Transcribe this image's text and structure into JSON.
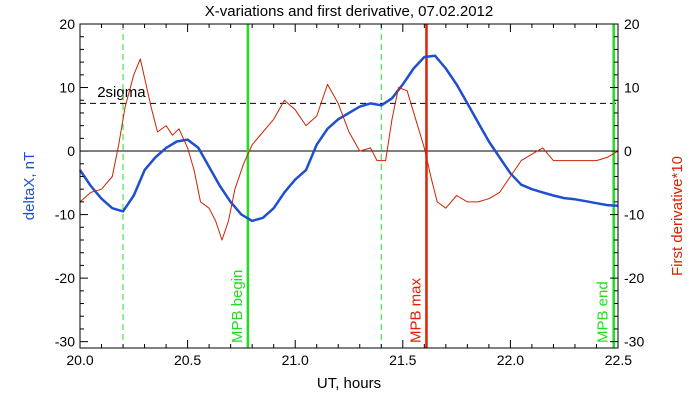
{
  "chart_data": {
    "type": "line",
    "title": "X-variations and first derivative, 07.02.2012",
    "xlabel": "UT, hours",
    "ylabel_left": "deltaX, nT",
    "ylabel_right": "First derivative*10",
    "xlim": [
      20.0,
      22.5
    ],
    "ylim": [
      -31,
      20
    ],
    "x_ticks": [
      {
        "value": 20.0,
        "label": "20.0"
      },
      {
        "value": 20.5,
        "label": "20.5"
      },
      {
        "value": 21.0,
        "label": "21.0"
      },
      {
        "value": 21.5,
        "label": "21.5"
      },
      {
        "value": 22.0,
        "label": "22.0"
      },
      {
        "value": 22.5,
        "label": "22.5"
      }
    ],
    "y_ticks": [
      {
        "value": 20,
        "label": "20"
      },
      {
        "value": 10,
        "label": "10"
      },
      {
        "value": 0,
        "label": "0"
      },
      {
        "value": -10,
        "label": "-10"
      },
      {
        "value": -20,
        "label": "-20"
      },
      {
        "value": -30,
        "label": "-30"
      }
    ],
    "colors": {
      "deltax": "#1f4fd0",
      "derivative": "#cc2200",
      "green": "#22dd22",
      "red_marker": "#dd2200",
      "left_label": "#1f4fd0",
      "right_label": "#dd2200"
    },
    "horizontal_lines": [
      {
        "y": 0,
        "style": "solid",
        "color": "#000000"
      },
      {
        "y": 7.5,
        "style": "dashed",
        "color": "#000000",
        "label": "2sigma",
        "label_x": 20.08,
        "label_y": 8.5
      }
    ],
    "vertical_markers": [
      {
        "x": 20.2,
        "style": "dashed",
        "color": "#22dd22",
        "label": ""
      },
      {
        "x": 20.78,
        "style": "solid",
        "color": "#22dd22",
        "label": "MPB begin"
      },
      {
        "x": 21.4,
        "style": "dashed",
        "color": "#22dd22",
        "label": ""
      },
      {
        "x": 21.61,
        "style": "solid",
        "color": "#dd2200",
        "label": "MPB max"
      },
      {
        "x": 22.48,
        "style": "solid",
        "color": "#22dd22",
        "label": "MPB end"
      }
    ],
    "series": [
      {
        "color": "#1f4fd0",
        "x": [
          20.0,
          20.05,
          20.1,
          20.15,
          20.2,
          20.25,
          20.3,
          20.35,
          20.4,
          20.45,
          20.5,
          20.55,
          20.6,
          20.65,
          20.7,
          20.75,
          20.8,
          20.85,
          20.9,
          20.95,
          21.0,
          21.05,
          21.1,
          21.15,
          21.2,
          21.25,
          21.3,
          21.35,
          21.4,
          21.45,
          21.5,
          21.55,
          21.6,
          21.65,
          21.7,
          21.75,
          21.8,
          21.85,
          21.9,
          21.95,
          22.0,
          22.05,
          22.1,
          22.15,
          22.2,
          22.25,
          22.3,
          22.35,
          22.4,
          22.45,
          22.5
        ],
        "y": [
          -3,
          -5.5,
          -7.5,
          -9,
          -9.5,
          -7,
          -3,
          -1,
          0.5,
          1.5,
          1.8,
          0.5,
          -2.5,
          -5.5,
          -8,
          -10,
          -11,
          -10.5,
          -9,
          -6.5,
          -4.5,
          -3,
          1,
          3.5,
          5,
          6,
          7,
          7.5,
          7.2,
          8.3,
          10.5,
          13,
          14.8,
          15,
          13,
          10.5,
          7.5,
          4.5,
          1.5,
          -1,
          -3.5,
          -5.3,
          -6,
          -6.5,
          -7,
          -7.4,
          -7.6,
          -7.9,
          -8.2,
          -8.5,
          -8.6
        ]
      },
      {
        "color": "#cc2200",
        "x": [
          20.0,
          20.05,
          20.1,
          20.15,
          20.18,
          20.21,
          20.25,
          20.28,
          20.3,
          20.33,
          20.36,
          20.4,
          20.43,
          20.46,
          20.5,
          20.53,
          20.56,
          20.6,
          20.63,
          20.66,
          20.69,
          20.72,
          20.76,
          20.8,
          20.85,
          20.9,
          20.95,
          21.0,
          21.05,
          21.1,
          21.15,
          21.2,
          21.25,
          21.3,
          21.35,
          21.38,
          21.42,
          21.45,
          21.48,
          21.52,
          21.56,
          21.6,
          21.63,
          21.66,
          21.7,
          21.75,
          21.8,
          21.85,
          21.9,
          21.95,
          22.0,
          22.05,
          22.1,
          22.15,
          22.2,
          22.25,
          22.3,
          22.35,
          22.4,
          22.45,
          22.5
        ],
        "y": [
          -8,
          -6.5,
          -6,
          -4,
          1,
          7,
          12,
          14.5,
          11.5,
          7,
          3,
          4,
          2.5,
          3.5,
          0.5,
          -3,
          -8,
          -9,
          -11,
          -14,
          -11,
          -6,
          -2,
          1,
          3,
          5,
          8,
          6.5,
          4,
          5.5,
          10.5,
          7.5,
          3,
          0,
          0.5,
          -1.5,
          -1.5,
          5,
          10,
          9.5,
          5,
          0.5,
          -4,
          -8,
          -9,
          -7,
          -8,
          -8,
          -7.5,
          -6.5,
          -4,
          -1.5,
          -0.5,
          0.5,
          -1.5,
          -1.5,
          -1.5,
          -1.5,
          -1.5,
          -1,
          0
        ]
      }
    ]
  }
}
